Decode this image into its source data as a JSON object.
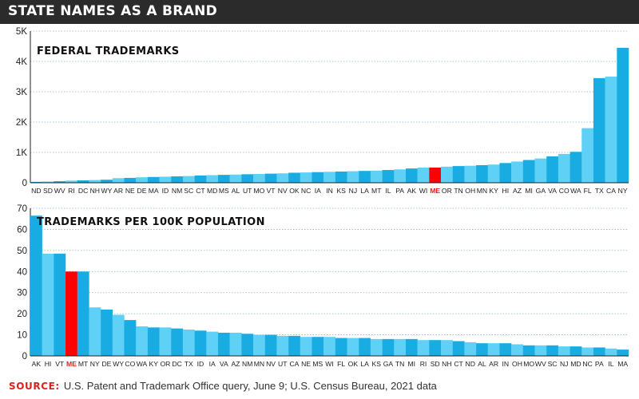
{
  "header": {
    "title": "STATE NAMES AS A BRAND"
  },
  "source": {
    "label": "SOURCE:",
    "text": "U.S. Patent and Trademark Office query, June 9; U.S. Census Bureau, 2021 data"
  },
  "colors": {
    "bar_a": "#19ace3",
    "bar_b": "#5fd1f7",
    "highlight": "#ff0000",
    "header_bg": "#2b2b2b",
    "source_label": "#d9231d"
  },
  "chart_data": [
    {
      "type": "bar",
      "title": "FEDERAL TRADEMARKS",
      "highlight": "ME",
      "ylim": [
        0,
        5000
      ],
      "yticks": [
        0,
        1000,
        2000,
        3000,
        4000,
        5000
      ],
      "ytick_labels": [
        "0",
        "1K",
        "2K",
        "3K",
        "4K",
        "5K"
      ],
      "grid": true,
      "categories": [
        "ND",
        "SD",
        "WV",
        "RI",
        "DC",
        "NH",
        "WY",
        "AR",
        "NE",
        "DE",
        "MA",
        "ID",
        "NM",
        "SC",
        "CT",
        "MD",
        "MS",
        "AL",
        "UT",
        "MO",
        "VT",
        "NV",
        "OK",
        "NC",
        "IA",
        "IN",
        "KS",
        "NJ",
        "LA",
        "MT",
        "IL",
        "PA",
        "AK",
        "WI",
        "ME",
        "OR",
        "TN",
        "OH",
        "MN",
        "KY",
        "HI",
        "AZ",
        "MI",
        "GA",
        "VA",
        "CO",
        "WA",
        "FL",
        "TX",
        "CA",
        "NY"
      ],
      "values": [
        30,
        40,
        50,
        70,
        80,
        90,
        100,
        150,
        160,
        180,
        190,
        200,
        210,
        220,
        240,
        250,
        260,
        270,
        280,
        290,
        300,
        310,
        330,
        340,
        350,
        360,
        370,
        380,
        390,
        400,
        420,
        440,
        470,
        500,
        500,
        530,
        550,
        560,
        580,
        600,
        650,
        700,
        750,
        800,
        870,
        950,
        1020,
        1800,
        3450,
        3500,
        4450
      ]
    },
    {
      "type": "bar",
      "title": "TRADEMARKS PER 100K POPULATION",
      "highlight": "ME",
      "ylim": [
        0,
        70
      ],
      "yticks": [
        0,
        10,
        20,
        30,
        40,
        50,
        60,
        70
      ],
      "ytick_labels": [
        "0",
        "10",
        "20",
        "30",
        "40",
        "50",
        "60",
        "70"
      ],
      "grid": true,
      "categories": [
        "AK",
        "HI",
        "VT",
        "ME",
        "MT",
        "NY",
        "DE",
        "WY",
        "CO",
        "WA",
        "KY",
        "OR",
        "DC",
        "TX",
        "ID",
        "IA",
        "VA",
        "AZ",
        "NM",
        "MN",
        "NV",
        "UT",
        "CA",
        "NE",
        "MS",
        "WI",
        "FL",
        "OK",
        "LA",
        "KS",
        "GA",
        "TN",
        "MI",
        "RI",
        "SD",
        "NH",
        "CT",
        "ND",
        "AL",
        "AR",
        "IN",
        "OH",
        "MO",
        "WV",
        "SC",
        "NJ",
        "MD",
        "NC",
        "PA",
        "IL",
        "MA"
      ],
      "values": [
        66.5,
        48.5,
        48.5,
        40,
        40,
        23,
        22,
        19.5,
        17,
        14,
        13.5,
        13.5,
        13,
        12.5,
        12,
        11.5,
        11,
        11,
        10.5,
        10,
        10,
        9.5,
        9.5,
        9,
        9,
        9,
        8.5,
        8.5,
        8.5,
        8,
        8,
        8,
        8,
        7.5,
        7.5,
        7.5,
        7,
        6.5,
        6,
        6,
        6,
        5.5,
        5,
        5,
        5,
        4.5,
        4.5,
        4,
        4,
        3.5,
        3
      ]
    }
  ]
}
